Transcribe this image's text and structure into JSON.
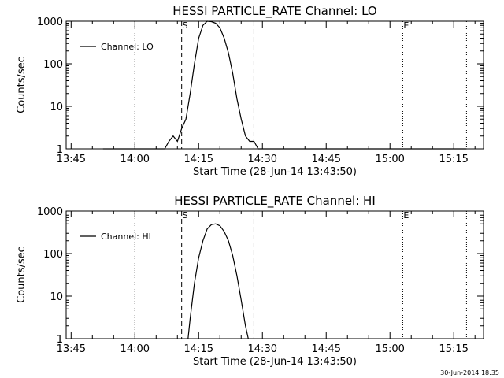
{
  "chart_data": [
    {
      "type": "line",
      "title": "HESSI PARTICLE_RATE Channel: LO",
      "xlabel": "Start Time (28-Jun-14 13:43:50)",
      "ylabel": "Counts/sec",
      "y_scale": "log",
      "xlim": [
        "13:43:50",
        "15:22:00"
      ],
      "ylim": [
        1,
        1000
      ],
      "x_ticks": [
        "13:45",
        "14:00",
        "14:15",
        "14:30",
        "14:45",
        "15:00",
        "15:15"
      ],
      "y_ticks": [
        "1",
        "10",
        "100",
        "1000"
      ],
      "legend": {
        "label": "Channel: LO",
        "placement": "top-left"
      },
      "grid": false,
      "markers": [
        {
          "label": "S",
          "time": "14:11:00",
          "style": "dashed"
        },
        {
          "label": "E",
          "time": "15:03:00",
          "style": "dotted"
        }
      ],
      "other_lines": [
        {
          "time": "14:00",
          "style": "dotted"
        },
        {
          "time": "14:28:00",
          "style": "dashed"
        },
        {
          "time": "15:18:00",
          "style": "dotted"
        }
      ],
      "series": [
        {
          "name": "Channel: LO",
          "x": [
            "13:52:30",
            "13:55",
            "13:57",
            "13:59",
            "14:02",
            "14:04",
            "14:06",
            "14:07",
            "14:08",
            "14:09",
            "14:10",
            "14:11",
            "14:12",
            "14:13",
            "14:14",
            "14:15",
            "14:16",
            "14:17",
            "14:18",
            "14:19",
            "14:20",
            "14:21",
            "14:22",
            "14:23",
            "14:24",
            "14:25",
            "14:26",
            "14:27",
            "14:28",
            "14:29",
            "14:30",
            "14:32",
            "14:35",
            "14:38",
            "14:42",
            "14:46",
            "14:50",
            "14:55",
            "15:00",
            "15:05",
            "15:10",
            "15:15",
            "15:18"
          ],
          "y": [
            1,
            1,
            1,
            1,
            1,
            1,
            1,
            1,
            1.5,
            2,
            1.5,
            3,
            5,
            20,
            100,
            400,
            800,
            1000,
            980,
            900,
            700,
            400,
            180,
            60,
            15,
            5,
            2,
            1.5,
            1.5,
            1,
            1,
            1,
            1,
            1,
            1,
            1,
            1,
            1,
            1,
            1,
            1,
            1,
            1
          ]
        }
      ]
    },
    {
      "type": "line",
      "title": "HESSI PARTICLE_RATE Channel: HI",
      "xlabel": "Start Time (28-Jun-14 13:43:50)",
      "ylabel": "Counts/sec",
      "y_scale": "log",
      "xlim": [
        "13:43:50",
        "15:22:00"
      ],
      "ylim": [
        1,
        1000
      ],
      "x_ticks": [
        "13:45",
        "14:00",
        "14:15",
        "14:30",
        "14:45",
        "15:00",
        "15:15"
      ],
      "y_ticks": [
        "1",
        "10",
        "100",
        "1000"
      ],
      "legend": {
        "label": "Channel: HI",
        "placement": "top-left"
      },
      "grid": false,
      "markers": [
        {
          "label": "S",
          "time": "14:11:00",
          "style": "dashed"
        },
        {
          "label": "E",
          "time": "15:03:00",
          "style": "dotted"
        }
      ],
      "other_lines": [
        {
          "time": "14:00",
          "style": "dotted"
        },
        {
          "time": "14:28:00",
          "style": "dashed"
        },
        {
          "time": "15:18:00",
          "style": "dotted"
        }
      ],
      "series": [
        {
          "name": "Channel: HI",
          "x": [
            "14:12:30",
            "14:13",
            "14:14",
            "14:15",
            "14:16",
            "14:17",
            "14:18",
            "14:19",
            "14:20",
            "14:21",
            "14:22",
            "14:23",
            "14:24",
            "14:25",
            "14:26",
            "14:26:40"
          ],
          "y": [
            1,
            3,
            20,
            80,
            200,
            380,
            480,
            500,
            450,
            330,
            200,
            90,
            30,
            8,
            2,
            1
          ]
        }
      ]
    }
  ],
  "footer": "30-Jun-2014 18:35"
}
